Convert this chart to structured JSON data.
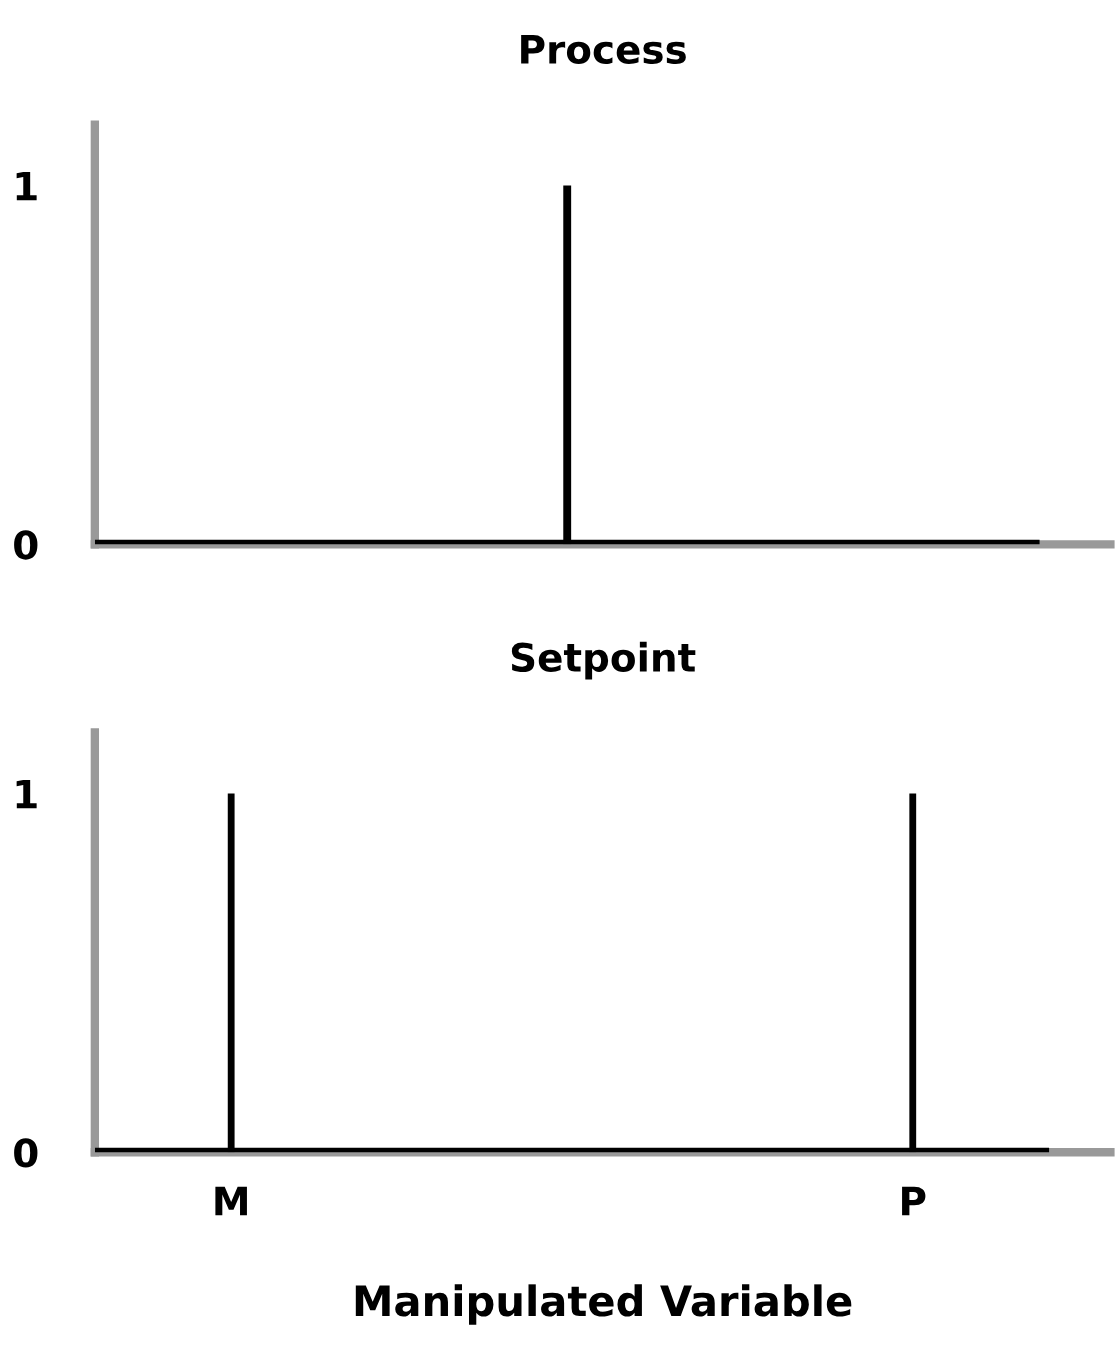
{
  "chart_data": [
    {
      "type": "bar",
      "title": "Process",
      "categories": [
        null,
        null,
        null,
        null,
        null
      ],
      "series": [
        {
          "color": "#000000",
          "values": [
            0,
            0,
            1,
            0,
            0
          ]
        }
      ],
      "ylim": [
        0,
        1.17
      ],
      "yticks": [
        0,
        1
      ],
      "tick_labels": "y",
      "ref_lines": [
        {
          "axis": "y",
          "value": 0,
          "color": "#000000"
        }
      ]
    },
    {
      "type": "bar",
      "title": "Setpoint",
      "xlabel": "Manipulated Variable",
      "categories": [
        "M",
        null,
        null,
        null,
        null,
        "P"
      ],
      "series": [
        {
          "color": "#000000",
          "values": [
            1,
            0,
            0,
            0,
            0,
            1
          ]
        }
      ],
      "ylim": [
        0,
        1.17
      ],
      "yticks": [
        0,
        1
      ],
      "ref_lines": [
        {
          "axis": "y",
          "value": 0,
          "color": "#000000"
        }
      ]
    }
  ]
}
